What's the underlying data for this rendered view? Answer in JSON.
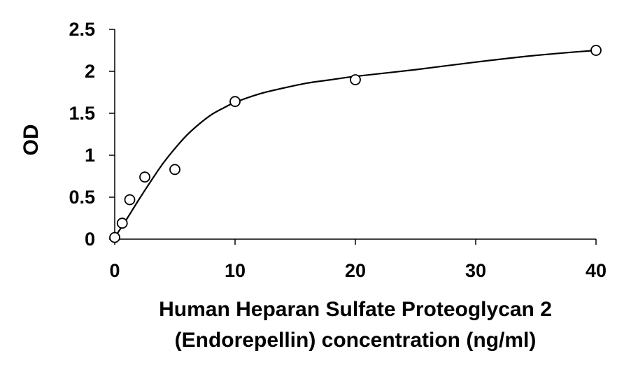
{
  "chart_data": {
    "type": "scatter",
    "title": "",
    "xlabel_lines": [
      "Human Heparan Sulfate Proteoglycan 2",
      "(Endorepellin) concentration (ng/ml)"
    ],
    "ylabel": "OD",
    "xlim": [
      0,
      40
    ],
    "ylim": [
      0,
      2.5
    ],
    "x_ticks": [
      0,
      10,
      20,
      30,
      40
    ],
    "x_tick_labels": [
      "0",
      "10",
      "20",
      "30",
      "40"
    ],
    "y_ticks": [
      0,
      0.5,
      1,
      1.5,
      2,
      2.5
    ],
    "y_tick_labels": [
      "0",
      "0.5",
      "1",
      "1.5",
      "2",
      "2.5"
    ],
    "grid": false,
    "legend": "none",
    "series": [
      {
        "marker": "open-circle",
        "x": [
          0,
          0.625,
          1.25,
          2.5,
          5,
          10,
          20,
          40
        ],
        "y": [
          0.02,
          0.19,
          0.47,
          0.74,
          0.83,
          1.64,
          1.9,
          2.25
        ]
      }
    ],
    "fit_curve": {
      "style": "smooth-line",
      "x": [
        0,
        1,
        2,
        3,
        4,
        5,
        6,
        7,
        8,
        9,
        10,
        12,
        14,
        16,
        18,
        20,
        25,
        30,
        35,
        40
      ],
      "y": [
        0.02,
        0.24,
        0.47,
        0.69,
        0.9,
        1.08,
        1.24,
        1.37,
        1.48,
        1.56,
        1.63,
        1.73,
        1.8,
        1.86,
        1.9,
        1.94,
        2.02,
        2.11,
        2.19,
        2.25
      ]
    },
    "colors": {
      "line": "#000000",
      "marker_fill": "#ffffff",
      "text": "#000000"
    }
  }
}
